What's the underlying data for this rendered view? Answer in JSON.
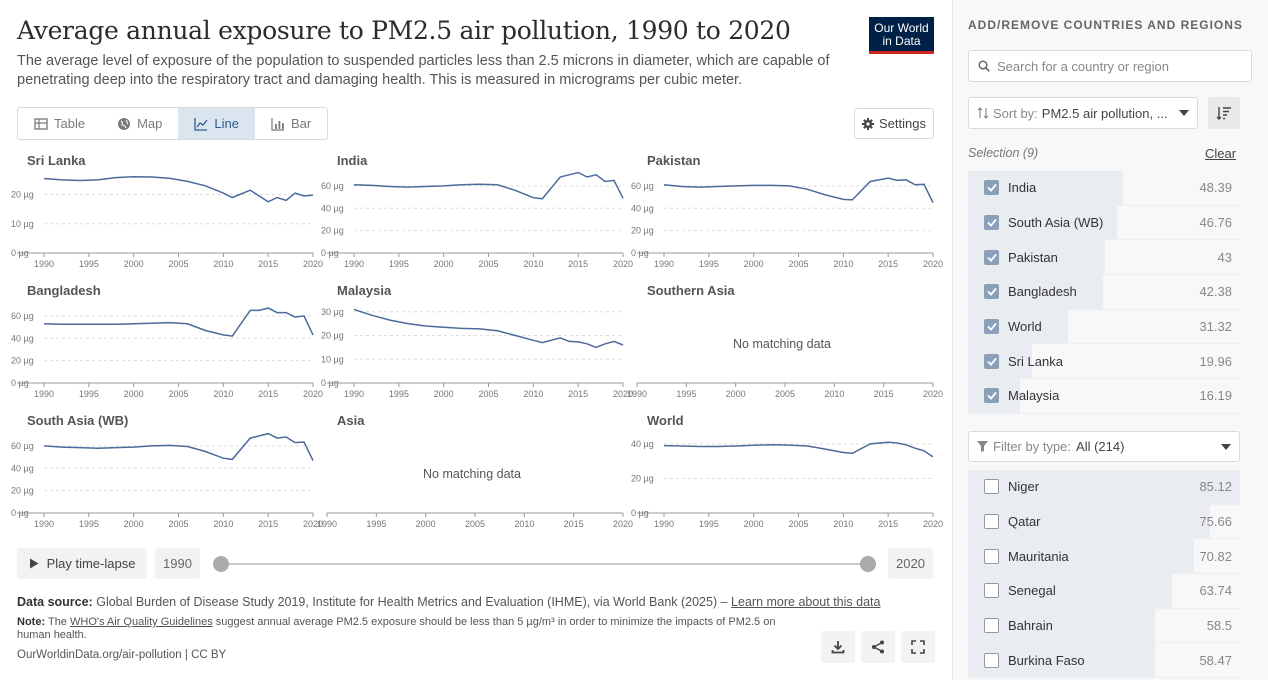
{
  "header": {
    "title": "Average annual exposure to PM2.5 air pollution, 1990 to 2020",
    "subtitle": "The average level of exposure of the population to suspended particles less than 2.5 microns in diameter, which are capable of penetrating deep into the respiratory tract and damaging health. This is measured in micrograms per cubic meter.",
    "logo_line1": "Our World",
    "logo_line2": "in Data"
  },
  "tabs": [
    {
      "label": "Table",
      "icon": "table-icon"
    },
    {
      "label": "Map",
      "icon": "globe-icon"
    },
    {
      "label": "Line",
      "icon": "line-chart-icon",
      "active": true
    },
    {
      "label": "Bar",
      "icon": "bar-chart-icon"
    }
  ],
  "settings_label": "Settings",
  "no_data_text": "No matching data",
  "chart_data": {
    "type": "line",
    "layout": "small-multiples",
    "title": "Average annual exposure to PM2.5 air pollution, 1990 to 2020",
    "unit": "µg",
    "x_ticks": [
      "1990",
      "1995",
      "2000",
      "2005",
      "2010",
      "2015",
      "2020"
    ],
    "x_range": [
      1990,
      2020
    ],
    "panels": [
      {
        "name": "Sri Lanka",
        "y_ticks": [
          0,
          10,
          20
        ],
        "ylim": [
          0,
          26
        ],
        "x": [
          1990,
          1992,
          1994,
          1996,
          1998,
          2000,
          2002,
          2004,
          2006,
          2008,
          2010,
          2011,
          2013,
          2015,
          2016,
          2017,
          2018,
          2019,
          2020
        ],
        "values": [
          25.5,
          25,
          24.8,
          25,
          25.8,
          26.1,
          26,
          25.6,
          24.5,
          23,
          20.5,
          19,
          21.5,
          17.5,
          19,
          18,
          20.5,
          19.5,
          19.8
        ]
      },
      {
        "name": "India",
        "y_ticks": [
          0,
          20,
          40,
          60
        ],
        "ylim": [
          0,
          68
        ],
        "x": [
          1990,
          1992,
          1994,
          1996,
          1998,
          2000,
          2002,
          2004,
          2006,
          2008,
          2010,
          2011,
          2013,
          2014,
          2015,
          2016,
          2017,
          2018,
          2019,
          2020
        ],
        "values": [
          61,
          60.5,
          59.5,
          59,
          59.5,
          60,
          61,
          61.5,
          61,
          56,
          49.5,
          48.5,
          68,
          70,
          72,
          68,
          70,
          64,
          65,
          49
        ]
      },
      {
        "name": "Pakistan",
        "y_ticks": [
          0,
          20,
          40,
          60
        ],
        "ylim": [
          0,
          68
        ],
        "x": [
          1990,
          1992,
          1994,
          1996,
          1998,
          2000,
          2002,
          2004,
          2006,
          2008,
          2010,
          2011,
          2013,
          2015,
          2016,
          2017,
          2018,
          2019,
          2020
        ],
        "values": [
          61,
          59.5,
          59,
          59.5,
          60,
          60.5,
          60.5,
          60,
          57,
          52,
          48,
          47.5,
          64,
          67,
          65,
          65.5,
          61,
          61.5,
          45
        ]
      },
      {
        "name": "Bangladesh",
        "y_ticks": [
          0,
          20,
          40,
          60
        ],
        "ylim": [
          0,
          68
        ],
        "x": [
          1990,
          1992,
          1994,
          1996,
          1998,
          2000,
          2002,
          2004,
          2006,
          2008,
          2010,
          2011,
          2013,
          2014,
          2015,
          2016,
          2017,
          2018,
          2019,
          2020
        ],
        "values": [
          53,
          52.5,
          52.5,
          52.5,
          52.5,
          53,
          53.5,
          54,
          53,
          47,
          43,
          42,
          65,
          65,
          67,
          63,
          63,
          59,
          60,
          43
        ]
      },
      {
        "name": "Malaysia",
        "y_ticks": [
          0,
          10,
          20,
          30
        ],
        "ylim": [
          0,
          32
        ],
        "x": [
          1990,
          1992,
          1994,
          1996,
          1998,
          2000,
          2002,
          2004,
          2006,
          2008,
          2010,
          2011,
          2013,
          2014,
          2015,
          2016,
          2017,
          2018,
          2019,
          2020
        ],
        "values": [
          31,
          28.5,
          26.5,
          25,
          24,
          23.5,
          23,
          22.8,
          22,
          20,
          18,
          17,
          19,
          17.5,
          17.3,
          16.5,
          15,
          16.5,
          17.5,
          16
        ]
      },
      {
        "name": "Southern Asia",
        "no_data": true
      },
      {
        "name": "South Asia (WB)",
        "y_ticks": [
          0,
          20,
          40,
          60
        ],
        "ylim": [
          0,
          68
        ],
        "x": [
          1990,
          1992,
          1994,
          1996,
          1998,
          2000,
          2002,
          2004,
          2006,
          2008,
          2010,
          2011,
          2013,
          2014,
          2015,
          2016,
          2017,
          2018,
          2019,
          2020
        ],
        "values": [
          60,
          59,
          58.5,
          58,
          58.5,
          59,
          60,
          60.5,
          59.5,
          55,
          49,
          48,
          67,
          69,
          71,
          67,
          68,
          63,
          63.5,
          47
        ]
      },
      {
        "name": "Asia",
        "no_data": true
      },
      {
        "name": "World",
        "y_ticks": [
          0,
          20,
          40
        ],
        "ylim": [
          0,
          44
        ],
        "x": [
          1990,
          1992,
          1994,
          1996,
          1998,
          2000,
          2002,
          2004,
          2006,
          2008,
          2010,
          2011,
          2013,
          2015,
          2016,
          2017,
          2018,
          2019,
          2020
        ],
        "values": [
          39,
          38.8,
          38.5,
          38.5,
          38.8,
          39.2,
          39.5,
          39.3,
          38.8,
          37,
          35,
          34.5,
          40,
          41,
          40.5,
          39.5,
          37.5,
          36,
          32.5
        ]
      }
    ]
  },
  "timeline": {
    "play_label": "Play time-lapse",
    "start_year": "1990",
    "end_year": "2020"
  },
  "footer": {
    "source_label": "Data source:",
    "source_text": "Global Burden of Disease Study 2019, Institute for Health Metrics and Evaluation (IHME), via World Bank (2025) –",
    "source_link": "Learn more about this data",
    "note_label": "Note:",
    "note_pre": "The",
    "note_link": "WHO's Air Quality Guidelines",
    "note_text": "suggest annual average PM2.5 exposure should be less than 5 µg/m³ in order to minimize the impacts of PM2.5 on human health.",
    "credit": "OurWorldinData.org/air-pollution | CC BY"
  },
  "sidebar": {
    "heading": "ADD/REMOVE COUNTRIES AND REGIONS",
    "search_placeholder": "Search for a country or region",
    "sort_label": "Sort by:",
    "sort_value": "PM2.5 air pollution, ...",
    "selection_label": "Selection (9)",
    "clear_label": "Clear",
    "selected": [
      {
        "name": "India",
        "value": "48.39",
        "fraction": 0.57
      },
      {
        "name": "South Asia (WB)",
        "value": "46.76",
        "fraction": 0.549
      },
      {
        "name": "Pakistan",
        "value": "43",
        "fraction": 0.505
      },
      {
        "name": "Bangladesh",
        "value": "42.38",
        "fraction": 0.498
      },
      {
        "name": "World",
        "value": "31.32",
        "fraction": 0.368
      },
      {
        "name": "Sri Lanka",
        "value": "19.96",
        "fraction": 0.234
      },
      {
        "name": "Malaysia",
        "value": "16.19",
        "fraction": 0.19
      }
    ],
    "filter_label": "Filter by type:",
    "filter_value": "All (214)",
    "others": [
      {
        "name": "Niger",
        "value": "85.12",
        "fraction": 1.0
      },
      {
        "name": "Qatar",
        "value": "75.66",
        "fraction": 0.889
      },
      {
        "name": "Mauritania",
        "value": "70.82",
        "fraction": 0.832
      },
      {
        "name": "Senegal",
        "value": "63.74",
        "fraction": 0.749
      },
      {
        "name": "Bahrain",
        "value": "58.5",
        "fraction": 0.687
      },
      {
        "name": "Burkina Faso",
        "value": "58.47",
        "fraction": 0.687
      }
    ]
  },
  "colors": {
    "line": "#4c6a9c",
    "accent": "#2c5c94",
    "logo_bg": "#002147",
    "logo_bar": "#ce261e"
  }
}
